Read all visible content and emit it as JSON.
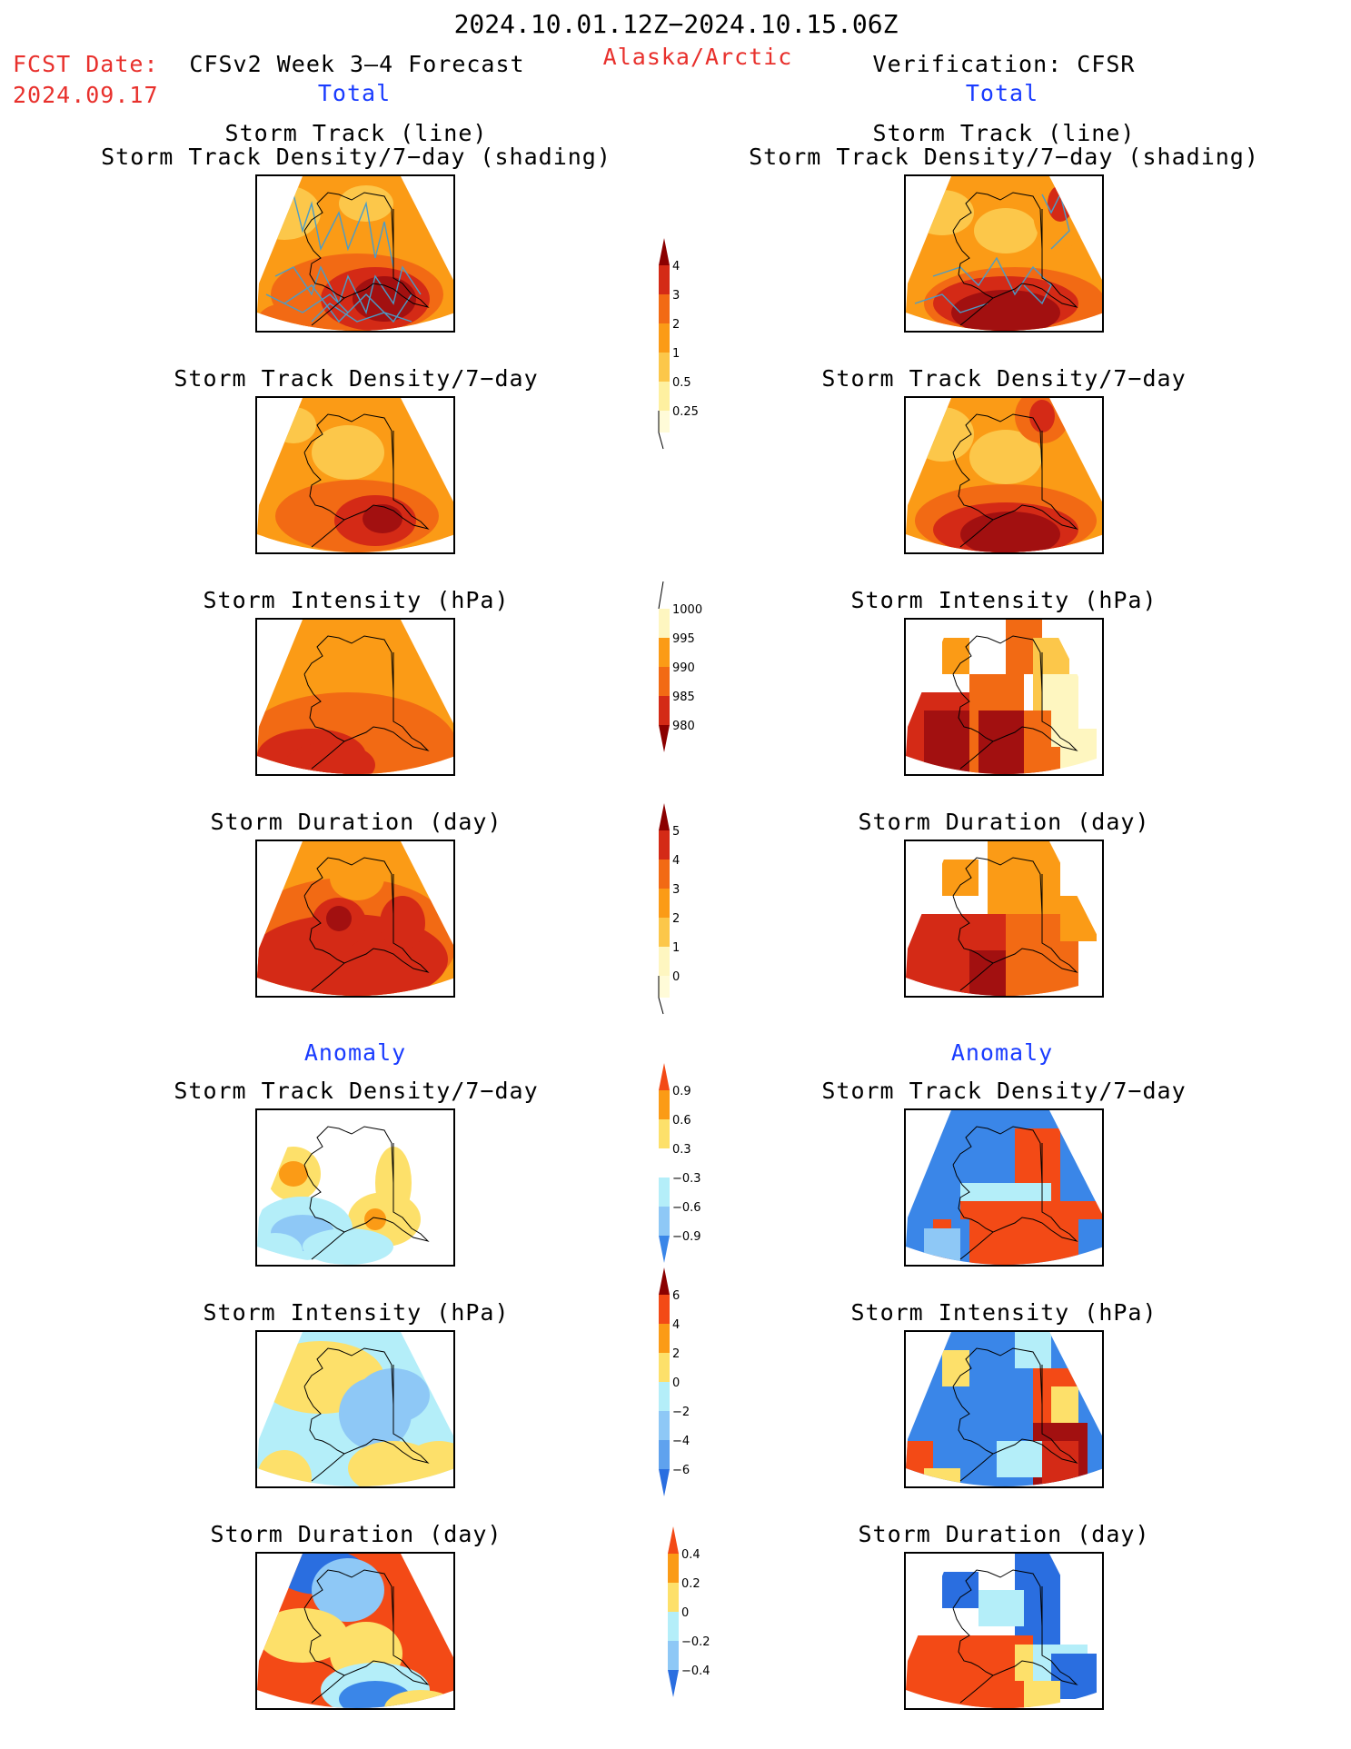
{
  "header": {
    "period": "2024.10.01.12Z−2024.10.15.06Z",
    "fcst_label": "FCST Date:",
    "fcst_date": "2024.09.17",
    "model": "CFSv2 Week 3–4 Forecast",
    "region": "Alaska/Arctic",
    "verification": "Verification: CFSR"
  },
  "sections": {
    "total_left": "Total",
    "total_right": "Total",
    "anomaly_left": "Anomaly",
    "anomaly_right": "Anomaly"
  },
  "panel_titles": {
    "track_line": "Storm Track (line)",
    "track_shading": "Storm Track Density/7−day (shading)",
    "track_density": "Storm Track Density/7−day",
    "intensity": "Storm Intensity (hPa)",
    "duration": "Storm Duration (day)"
  },
  "colorbars": {
    "density_total": {
      "labels": [
        "4",
        "3",
        "2",
        "1",
        "0.5",
        "0.25"
      ],
      "colors": [
        "#8b0000",
        "#d42a16",
        "#f26a14",
        "#fb9b16",
        "#fcc74a",
        "#fef0a0"
      ]
    },
    "intensity_total": {
      "labels": [
        "1000",
        "995",
        "990",
        "985",
        "980"
      ],
      "colors": [
        "#fef6c0",
        "#fb9b16",
        "#f26a14",
        "#d42a16",
        "#8b0000"
      ]
    },
    "duration_total": {
      "labels": [
        "5",
        "4",
        "3",
        "2",
        "1",
        "0"
      ],
      "colors": [
        "#8b0000",
        "#d42a16",
        "#f26a14",
        "#fb9b16",
        "#fcc74a",
        "#fef6c0"
      ]
    },
    "density_anom": {
      "labels": [
        "0.9",
        "0.6",
        "0.3",
        "−0.3",
        "−0.6",
        "−0.9"
      ],
      "colors": [
        "#f34a16",
        "#fb9b16",
        "#fde06a",
        "#ffffff",
        "#b4eef9",
        "#8ec8f6",
        "#3a86e8"
      ]
    },
    "intensity_anom": {
      "labels": [
        "6",
        "4",
        "2",
        "0",
        "−2",
        "−4",
        "−6"
      ],
      "colors": [
        "#8b0000",
        "#f34a16",
        "#fb9b16",
        "#fde06a",
        "#b4eef9",
        "#8ec8f6",
        "#5fa2ee",
        "#2a6ee0"
      ]
    },
    "duration_anom": {
      "labels": [
        "0.4",
        "0.2",
        "0",
        "−0.2",
        "−0.4"
      ],
      "colors": [
        "#f34a16",
        "#fb9b16",
        "#fde06a",
        "#b4eef9",
        "#8ec8f6",
        "#2a6ee0"
      ]
    }
  },
  "colors": {
    "red_text": "#e8302c",
    "blue_text": "#1a3cff",
    "track_lines": "#4a9cc8"
  }
}
